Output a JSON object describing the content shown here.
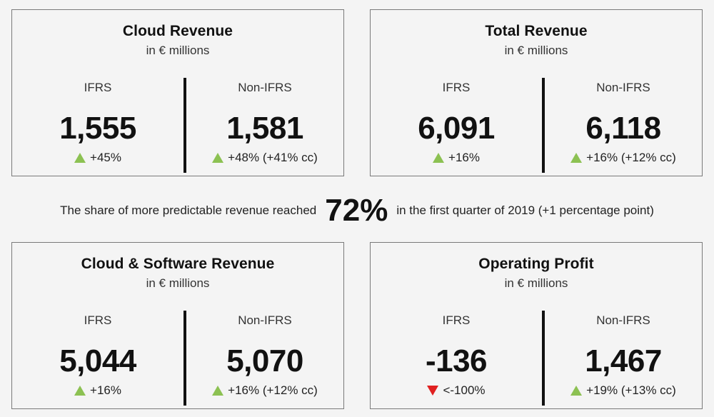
{
  "cards": [
    {
      "title": "Cloud Revenue",
      "subtitle": "in € millions",
      "left": {
        "label": "IFRS",
        "value": "1,555",
        "change": "+45%",
        "direction": "up"
      },
      "right": {
        "label": "Non-IFRS",
        "value": "1,581",
        "change": "+48% (+41% cc)",
        "direction": "up"
      }
    },
    {
      "title": "Total Revenue",
      "subtitle": "in € millions",
      "left": {
        "label": "IFRS",
        "value": "6,091",
        "change": "+16%",
        "direction": "up"
      },
      "right": {
        "label": "Non-IFRS",
        "value": "6,118",
        "change": "+16% (+12% cc)",
        "direction": "up"
      }
    },
    {
      "title": "Cloud & Software Revenue",
      "subtitle": "in € millions",
      "left": {
        "label": "IFRS",
        "value": "5,044",
        "change": "+16%",
        "direction": "up"
      },
      "right": {
        "label": "Non-IFRS",
        "value": "5,070",
        "change": "+16% (+12% cc)",
        "direction": "up"
      }
    },
    {
      "title": "Operating Profit",
      "subtitle": "in € millions",
      "left": {
        "label": "IFRS",
        "value": "-136",
        "change": "<-100%",
        "direction": "down"
      },
      "right": {
        "label": "Non-IFRS",
        "value": "1,467",
        "change": "+19% (+13% cc)",
        "direction": "up"
      }
    }
  ],
  "middle": {
    "prefix": "The share of more predictable revenue reached",
    "percentage": "72%",
    "suffix": "in the first quarter of 2019 (+1 percentage point)"
  },
  "colors": {
    "up": "#8cc152",
    "down": "#e02020",
    "border": "#7a7a7a"
  }
}
